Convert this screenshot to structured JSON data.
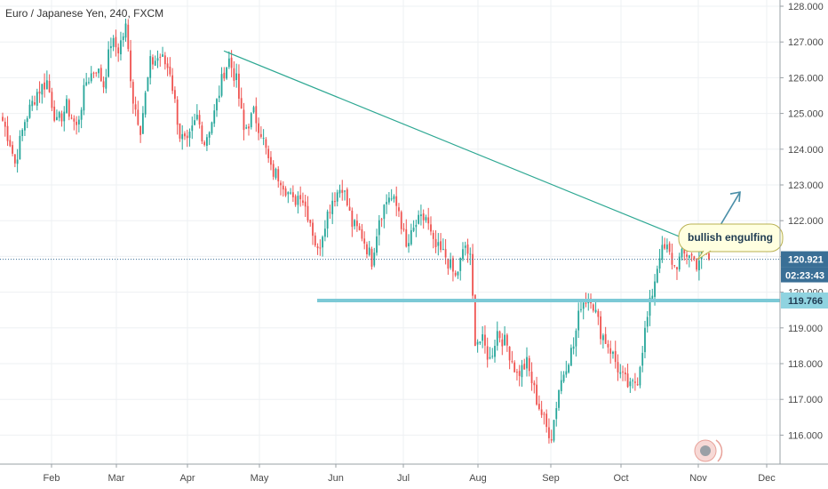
{
  "header": {
    "title": "Euro / Japanese Yen, 240, FXCM"
  },
  "colors": {
    "bull": "#26a69a",
    "bear": "#ef5350",
    "trendline": "#2ea893",
    "support": "#7cc9d6",
    "arrow": "#4a8fa8",
    "price_tag": "#3a6f96",
    "level_tag": "#8fd3e0",
    "note_fill": "#ffffe0",
    "note_stroke": "#b8b050"
  },
  "chart_data": {
    "type": "candlestick",
    "symbol": "Euro / Japanese Yen",
    "interval": "240",
    "source": "FXCM",
    "ylim": [
      115.5,
      128.1
    ],
    "y_ticks": [
      "128.000",
      "127.000",
      "126.000",
      "125.000",
      "124.000",
      "123.000",
      "122.000",
      "121.000",
      "120.000",
      "119.000",
      "118.000",
      "117.000",
      "116.000"
    ],
    "x_labels": [
      "Feb",
      "Mar",
      "Apr",
      "May",
      "Jun",
      "Jul",
      "Aug",
      "Sep",
      "Oct",
      "Nov",
      "Dec"
    ],
    "price_anchors": [
      [
        0,
        124.8
      ],
      [
        3,
        124.2
      ],
      [
        5,
        123.6
      ],
      [
        9,
        124.8
      ],
      [
        14,
        125.6
      ],
      [
        18,
        125.9
      ],
      [
        22,
        124.7
      ],
      [
        26,
        125.2
      ],
      [
        30,
        124.6
      ],
      [
        34,
        125.9
      ],
      [
        38,
        126.3
      ],
      [
        41,
        125.8
      ],
      [
        44,
        127.0
      ],
      [
        47,
        126.8
      ],
      [
        50,
        127.4
      ],
      [
        53,
        125.4
      ],
      [
        56,
        124.6
      ],
      [
        60,
        126.4
      ],
      [
        64,
        126.6
      ],
      [
        68,
        126.2
      ],
      [
        72,
        124.4
      ],
      [
        75,
        124.1
      ],
      [
        79,
        124.9
      ],
      [
        82,
        124.2
      ],
      [
        86,
        125.0
      ],
      [
        90,
        126.2
      ],
      [
        92,
        126.5
      ],
      [
        95,
        125.9
      ],
      [
        98,
        124.5
      ],
      [
        102,
        125.0
      ],
      [
        105,
        124.5
      ],
      [
        109,
        123.4
      ],
      [
        113,
        123.2
      ],
      [
        118,
        122.5
      ],
      [
        121,
        122.8
      ],
      [
        125,
        122.0
      ],
      [
        128,
        121.1
      ],
      [
        131,
        122.0
      ],
      [
        134,
        122.6
      ],
      [
        138,
        123.0
      ],
      [
        142,
        121.9
      ],
      [
        146,
        121.6
      ],
      [
        150,
        120.9
      ],
      [
        153,
        122.1
      ],
      [
        157,
        122.7
      ],
      [
        161,
        122.3
      ],
      [
        164,
        121.2
      ],
      [
        168,
        121.9
      ],
      [
        172,
        122.1
      ],
      [
        175,
        121.3
      ],
      [
        180,
        121.0
      ],
      [
        184,
        120.4
      ],
      [
        188,
        121.3
      ],
      [
        190,
        120.9
      ],
      [
        192,
        118.7
      ],
      [
        195,
        118.6
      ],
      [
        198,
        118.1
      ],
      [
        201,
        118.9
      ],
      [
        205,
        118.5
      ],
      [
        209,
        117.7
      ],
      [
        213,
        118.0
      ],
      [
        217,
        117.0
      ],
      [
        221,
        116.2
      ],
      [
        223,
        116.0
      ],
      [
        226,
        117.3
      ],
      [
        229,
        118.0
      ],
      [
        232,
        118.5
      ],
      [
        235,
        119.7
      ],
      [
        239,
        119.9
      ],
      [
        243,
        118.9
      ],
      [
        247,
        118.4
      ],
      [
        251,
        117.7
      ],
      [
        255,
        117.3
      ],
      [
        258,
        117.6
      ],
      [
        261,
        118.9
      ],
      [
        264,
        120.0
      ],
      [
        267,
        121.1
      ],
      [
        270,
        121.2
      ],
      [
        273,
        120.7
      ],
      [
        276,
        121.0
      ],
      [
        279,
        121.1
      ],
      [
        282,
        120.8
      ],
      [
        285,
        121.2
      ],
      [
        287,
        120.9
      ]
    ],
    "current_price": "120.921",
    "countdown": "02:23:43",
    "support_level": "119.766",
    "trendline": {
      "from": [
        "Apr 16",
        126.75
      ],
      "to": [
        "Oct 22",
        121.3
      ]
    },
    "annotation": "bullish engulfing",
    "projection_arrow": {
      "from": 121.0,
      "to": 122.8
    }
  }
}
